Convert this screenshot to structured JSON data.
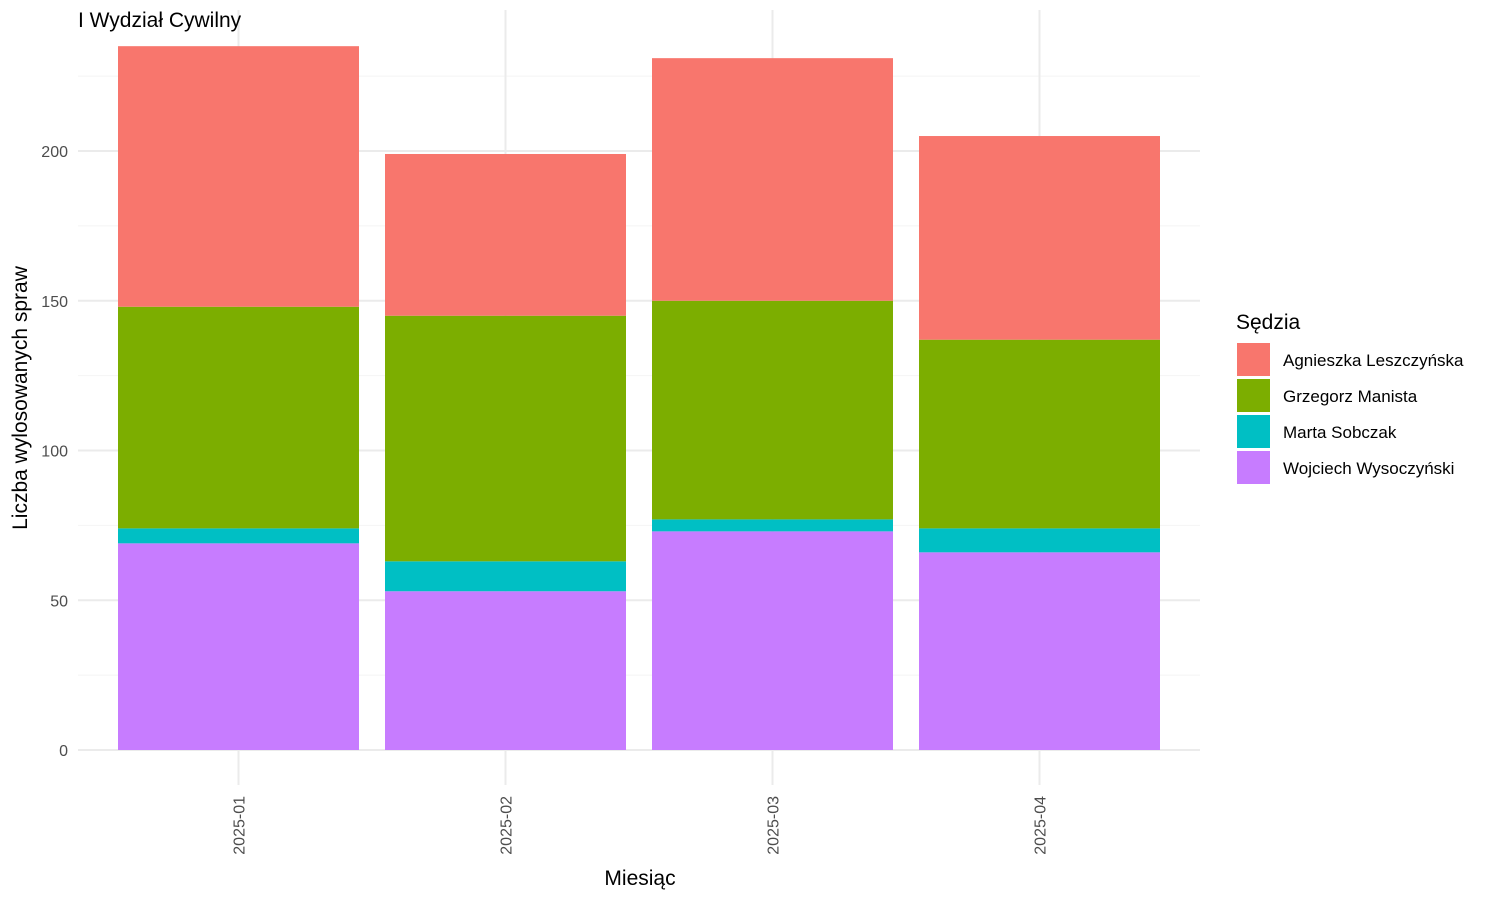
{
  "chart_data": {
    "type": "bar",
    "stacked": true,
    "title": "I Wydział Cywilny",
    "xlabel": "Miesiąc",
    "ylabel": "Liczba wylosowanych spraw",
    "categories": [
      "2025-01",
      "2025-02",
      "2025-03",
      "2025-04"
    ],
    "ylim": [
      0,
      235
    ],
    "yticks": [
      0,
      50,
      100,
      150,
      200
    ],
    "grid": true,
    "legend": {
      "title": "Sędzia",
      "position": "right"
    },
    "series": [
      {
        "name": "Wojciech Wysoczyński",
        "color": "#C77CFF",
        "values": [
          69,
          53,
          73,
          66
        ]
      },
      {
        "name": "Marta Sobczak",
        "color": "#00BFC4",
        "values": [
          5,
          10,
          4,
          8
        ]
      },
      {
        "name": "Grzegorz Manista",
        "color": "#7CAE00",
        "values": [
          74,
          82,
          73,
          63
        ]
      },
      {
        "name": "Agnieszka Leszczyńska",
        "color": "#F8766D",
        "values": [
          87,
          54,
          81,
          68
        ]
      }
    ],
    "legend_order": [
      "Agnieszka Leszczyńska",
      "Grzegorz Manista",
      "Marta Sobczak",
      "Wojciech Wysoczyński"
    ]
  }
}
